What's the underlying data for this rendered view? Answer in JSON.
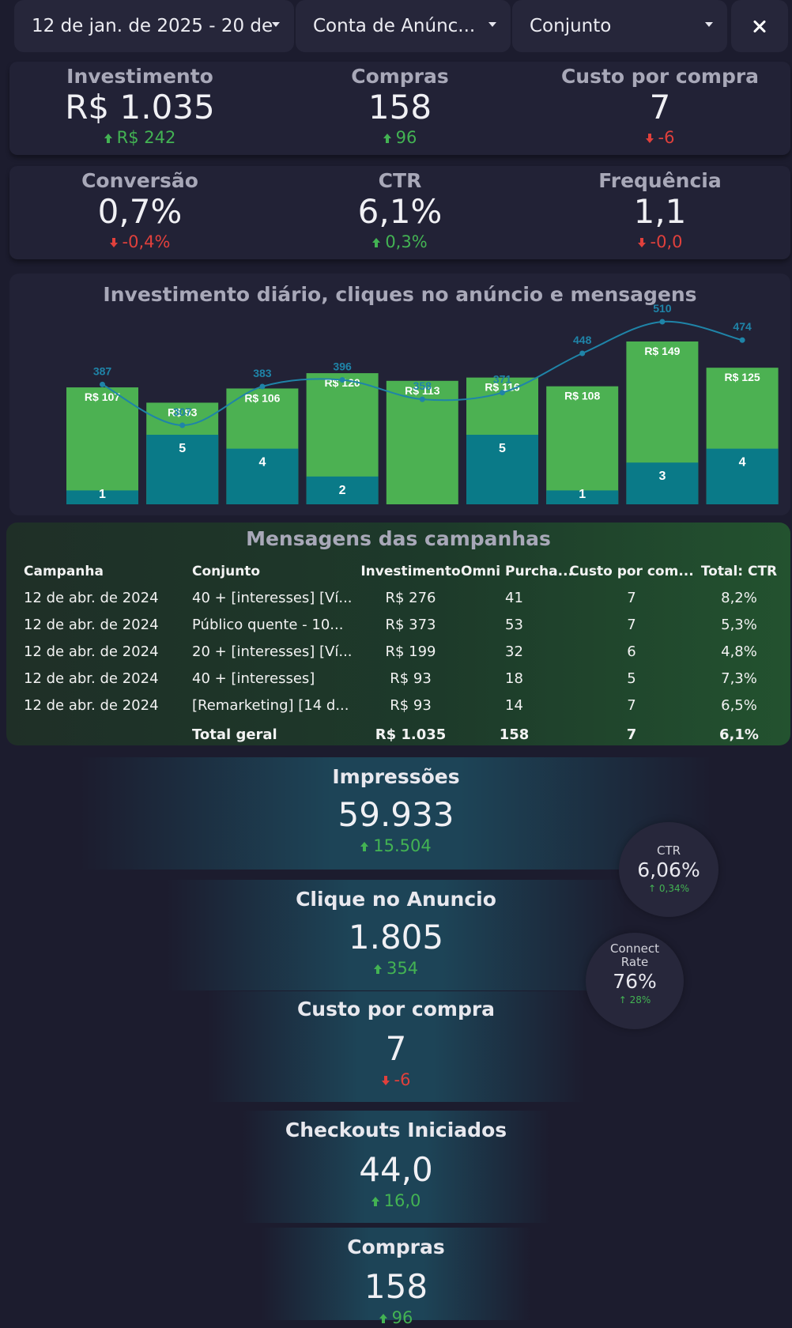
{
  "filters": {
    "date_range": "12 de jan. de 2025 - 20 de",
    "account": "Conta de Anúnc...",
    "ad_set": "Conjunto"
  },
  "kpis_row1": [
    {
      "label": "Investimento",
      "value": "R$ 1.035",
      "delta": "R$ 242",
      "trend": "up"
    },
    {
      "label": "Compras",
      "value": "158",
      "delta": "96",
      "trend": "up"
    },
    {
      "label": "Custo por compra",
      "value": "7",
      "delta": "-6",
      "trend": "down"
    }
  ],
  "kpis_row2": [
    {
      "label": "Conversão",
      "value": "0,7%",
      "delta": "-0,4%",
      "trend": "down"
    },
    {
      "label": "CTR",
      "value": "6,1%",
      "delta": "0,3%",
      "trend": "up"
    },
    {
      "label": "Frequência",
      "value": "1,1",
      "delta": "-0,0",
      "trend": "down"
    }
  ],
  "chart_data": {
    "type": "bar",
    "title": "Investimento diário, cliques no anúncio e mensagens",
    "categories": [
      "",
      "",
      "",
      "",
      "",
      "",
      "",
      "",
      ""
    ],
    "series": [
      {
        "values": [
          107,
          93,
          106,
          120,
          113,
          116,
          108,
          149,
          125
        ],
        "labels": [
          "R$ 107",
          "R$ 93",
          "R$ 106",
          "R$ 120",
          "R$ 113",
          "R$ 116",
          "R$ 108",
          "R$ 149",
          "R$ 125"
        ]
      },
      {
        "values": [
          1,
          5,
          4,
          2,
          0,
          5,
          1,
          3,
          4
        ],
        "labels": [
          "1",
          "5",
          "4",
          "2",
          "",
          "5",
          "1",
          "3",
          "4"
        ]
      },
      {
        "type": "line",
        "values": [
          387,
          307,
          383,
          396,
          358,
          371,
          448,
          510,
          474
        ],
        "labels": [
          "387",
          "307",
          "383",
          "396",
          "358",
          "371",
          "448",
          "510",
          "474"
        ]
      }
    ],
    "colors": {
      "bar": "#4cb152",
      "stack": "#0a7a88",
      "line": "#1f84a8"
    },
    "grid": false,
    "legend": "none"
  },
  "campaign_table": {
    "title": "Mensagens das campanhas",
    "columns": [
      "Campanha",
      "Conjunto",
      "Investimento",
      "Omni Purcha...",
      "Custo por com...",
      "Total: CTR"
    ],
    "rows": [
      [
        "12 de abr. de 2024",
        "40 + [interesses] [Ví...",
        "R$ 276",
        "41",
        "7",
        "8,2%"
      ],
      [
        "12 de abr. de 2024",
        "Público quente - 10...",
        "R$ 373",
        "53",
        "7",
        "5,3%"
      ],
      [
        "12 de abr. de 2024",
        "20 + [interesses] [Ví...",
        "R$ 199",
        "32",
        "6",
        "4,8%"
      ],
      [
        "12 de abr. de 2024",
        "40 + [interesses]",
        "R$ 93",
        "18",
        "5",
        "7,3%"
      ],
      [
        "12 de abr. de 2024",
        "[Remarketing] [14 d...",
        "R$ 93",
        "14",
        "7",
        "6,5%"
      ]
    ],
    "total": [
      "",
      "Total geral",
      "R$ 1.035",
      "158",
      "7",
      "6,1%"
    ]
  },
  "funnel": [
    {
      "label": "Impressões",
      "value": "59.933",
      "delta": "15.504",
      "trend": "up"
    },
    {
      "label": "Clique no Anuncio",
      "value": "1.805",
      "delta": "354",
      "trend": "up"
    },
    {
      "label": "Custo por compra",
      "value": "7",
      "delta": "-6",
      "trend": "down"
    },
    {
      "label": "Checkouts Iniciados",
      "value": "44,0",
      "delta": "16,0",
      "trend": "up"
    },
    {
      "label": "Compras",
      "value": "158",
      "delta": "96",
      "trend": "up"
    }
  ],
  "bubbles": [
    {
      "label": "CTR",
      "value": "6,06%",
      "delta": "0,34%"
    },
    {
      "label": "Connect Rate",
      "value": "76%",
      "delta": "28%"
    }
  ],
  "colors": {
    "up": "#43b353",
    "down": "#e0403c",
    "background": "#1c1c2e",
    "card": "#222236"
  }
}
